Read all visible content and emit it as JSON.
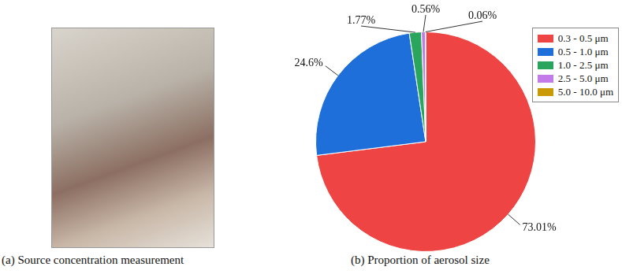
{
  "chart_data": {
    "type": "pie",
    "title": "(b) Proportion of aerosol size",
    "categories": [
      "0.3 - 0.5 μm",
      "0.5 - 1.0 μm",
      "1.0 - 2.5 μm",
      "2.5 - 5.0 μm",
      "5.0 - 10.0 μm"
    ],
    "values": [
      73.01,
      24.6,
      1.77,
      0.56,
      0.06
    ],
    "value_labels": [
      "73.01%",
      "24.6%",
      "1.77%",
      "0.56%",
      "0.06%"
    ],
    "colors": [
      "#ef4444",
      "#1f6fdb",
      "#2aa55e",
      "#c27be8",
      "#c99a06"
    ],
    "data_labels": true,
    "legend": "upper right"
  },
  "figure": {
    "panel_a_caption": "(a) Source concentration measurement"
  }
}
